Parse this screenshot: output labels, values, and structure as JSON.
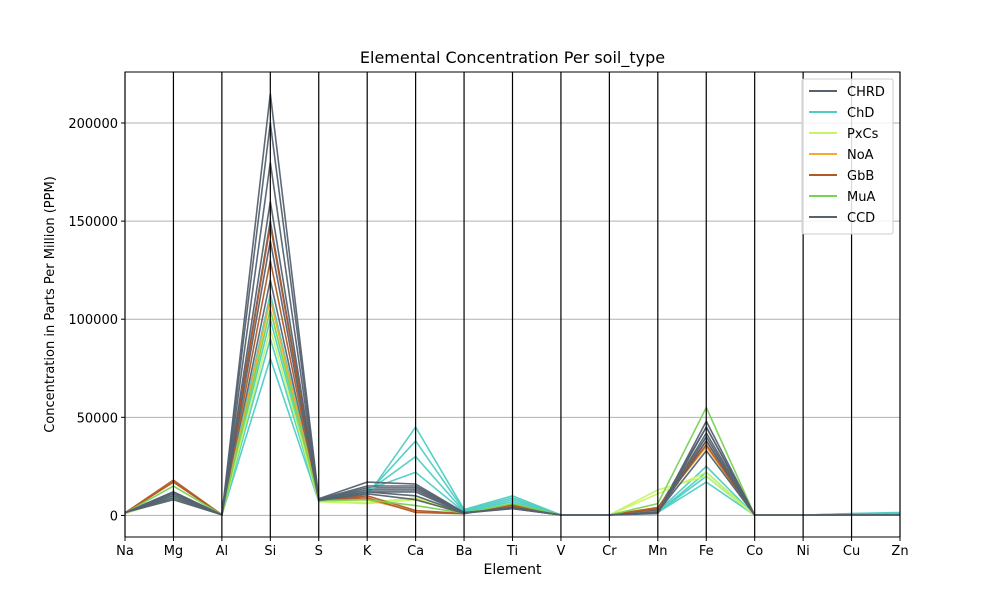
{
  "chart_data": {
    "type": "line",
    "subtype": "parallel-coordinates",
    "title": "Elemental Concentration Per soil_type",
    "xlabel": "Element",
    "ylabel": "Concentration in Parts Per Million (PPM)",
    "ylim": [
      -11000,
      226000
    ],
    "yticks": [
      0,
      50000,
      100000,
      150000,
      200000
    ],
    "ytick_labels": [
      "0",
      "50000",
      "100000",
      "150000",
      "200000"
    ],
    "grid": "horizontal",
    "legend_position": "top-right",
    "categories": [
      "Na",
      "Mg",
      "Al",
      "Si",
      "S",
      "K",
      "Ca",
      "Ba",
      "Ti",
      "V",
      "Cr",
      "Mn",
      "Fe",
      "Co",
      "Ni",
      "Cu",
      "Zn"
    ],
    "series": [
      {
        "name": "CHRD",
        "color": "#566270",
        "lines": [
          [
            1500,
            12000,
            300,
            150000,
            8000,
            14000,
            14000,
            1500,
            4000,
            200,
            200,
            3000,
            45000,
            100,
            100,
            300,
            300
          ],
          [
            1200,
            10000,
            300,
            120000,
            7500,
            12000,
            12000,
            1200,
            3500,
            200,
            200,
            2500,
            40000,
            100,
            100,
            300,
            300
          ]
        ]
      },
      {
        "name": "ChD",
        "color": "#4ecdc4",
        "lines": [
          [
            1000,
            9000,
            300,
            80000,
            7000,
            10000,
            45000,
            3000,
            10000,
            200,
            200,
            1500,
            17000,
            100,
            100,
            1000,
            1500
          ],
          [
            1000,
            9500,
            300,
            90000,
            7200,
            11000,
            38000,
            2500,
            9000,
            200,
            200,
            1500,
            20000,
            100,
            100,
            900,
            1200
          ],
          [
            1000,
            10000,
            300,
            100000,
            7500,
            12000,
            30000,
            2000,
            8000,
            200,
            200,
            1500,
            22000,
            100,
            100,
            800,
            1000
          ],
          [
            1100,
            10500,
            300,
            113000,
            7800,
            13000,
            22000,
            1800,
            7000,
            200,
            200,
            2000,
            25000,
            100,
            100,
            700,
            900
          ]
        ]
      },
      {
        "name": "PxCs",
        "color": "#c7f464",
        "lines": [
          [
            1000,
            9000,
            300,
            95000,
            7000,
            6000,
            8000,
            1200,
            5000,
            200,
            200,
            13000,
            20000,
            100,
            100,
            400,
            400
          ],
          [
            1000,
            9500,
            300,
            105000,
            7200,
            6500,
            9000,
            1300,
            5500,
            200,
            200,
            11000,
            22000,
            100,
            100,
            400,
            400
          ]
        ]
      },
      {
        "name": "NoA",
        "color": "#f6a830",
        "lines": [
          [
            1200,
            17000,
            300,
            110000,
            7800,
            8000,
            2000,
            1000,
            5000,
            200,
            200,
            4000,
            35000,
            100,
            100,
            400,
            400
          ]
        ]
      },
      {
        "name": "GbB",
        "color": "#b05a28",
        "lines": [
          [
            1300,
            18000,
            300,
            148000,
            8000,
            9000,
            1500,
            900,
            5500,
            200,
            200,
            4000,
            38000,
            100,
            100,
            400,
            400
          ],
          [
            1300,
            17000,
            300,
            130000,
            7900,
            10000,
            2500,
            1000,
            5000,
            200,
            200,
            3500,
            36000,
            100,
            100,
            400,
            400
          ]
        ]
      },
      {
        "name": "MuA",
        "color": "#77d353",
        "lines": [
          [
            1200,
            15000,
            300,
            105000,
            7500,
            8000,
            5000,
            1200,
            6000,
            200,
            200,
            6000,
            55000,
            100,
            100,
            500,
            500
          ]
        ]
      },
      {
        "name": "CCD",
        "color": "#556270",
        "lines": [
          [
            1500,
            8000,
            300,
            215000,
            8500,
            17000,
            16000,
            1500,
            3500,
            200,
            200,
            1000,
            45000,
            100,
            100,
            300,
            300
          ],
          [
            1500,
            9000,
            300,
            200000,
            8200,
            15000,
            15000,
            1400,
            3600,
            200,
            200,
            1200,
            48000,
            100,
            100,
            300,
            300
          ],
          [
            1400,
            10000,
            300,
            180000,
            8000,
            13000,
            13000,
            1300,
            3800,
            200,
            200,
            1400,
            42000,
            100,
            100,
            300,
            300
          ],
          [
            1400,
            11000,
            300,
            160000,
            7800,
            12000,
            10000,
            1200,
            4000,
            200,
            200,
            1600,
            38000,
            100,
            100,
            300,
            300
          ],
          [
            1300,
            12000,
            300,
            140000,
            7600,
            11000,
            8000,
            1100,
            4200,
            200,
            200,
            1800,
            33000,
            100,
            100,
            300,
            300
          ]
        ]
      }
    ]
  }
}
